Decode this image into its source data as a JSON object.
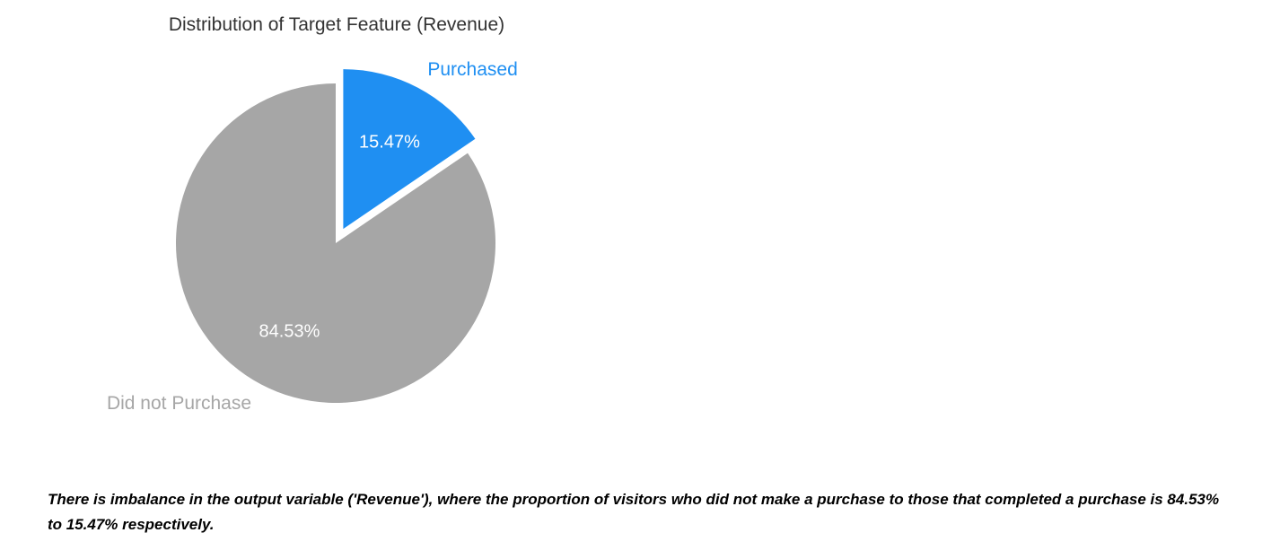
{
  "chart_data": {
    "type": "pie",
    "title": "Distribution of Target Feature (Revenue)",
    "slices": [
      {
        "label": "Purchased",
        "value": 15.47,
        "value_label": "15.47%",
        "color": "#1f8ff2",
        "exploded": true
      },
      {
        "label": "Did not Purchase",
        "value": 84.53,
        "value_label": "84.53%",
        "color": "#a6a6a6",
        "exploded": false
      }
    ],
    "legend": "none"
  },
  "caption": "There is imbalance in the output variable ('Revenue'), where the proportion of visitors who did not make a purchase to those that completed a purchase is 84.53% to 15.47% respectively."
}
